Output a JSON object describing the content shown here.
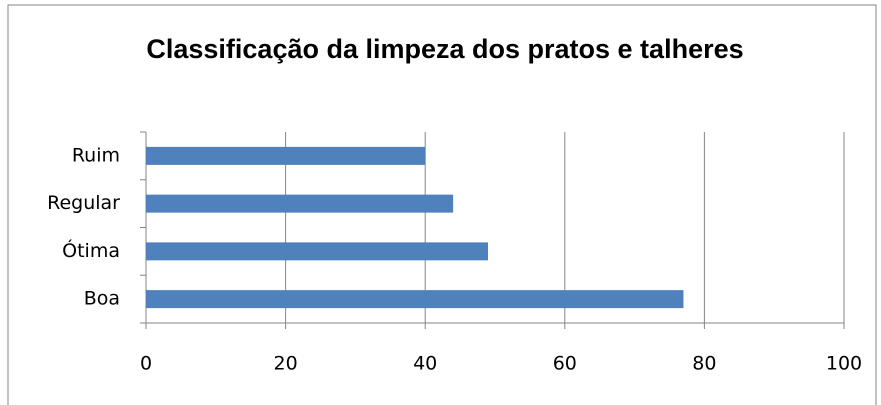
{
  "chart_data": {
    "type": "bar",
    "orientation": "horizontal",
    "title": "Classificação da limpeza dos pratos e talheres",
    "categories": [
      "Ruim",
      "Regular",
      "Ótima",
      "Boa"
    ],
    "values": [
      40,
      44,
      49,
      77
    ],
    "color": "#4f81bd",
    "xlim": [
      0,
      100
    ],
    "xticks": [
      0,
      20,
      40,
      60,
      80,
      100
    ],
    "grid": true
  }
}
